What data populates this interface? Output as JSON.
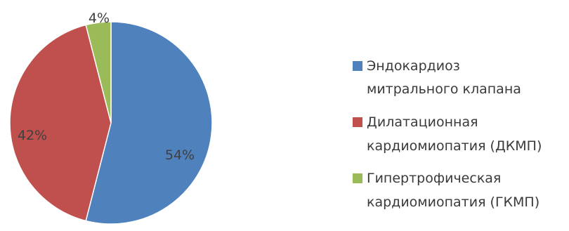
{
  "chart_data": {
    "type": "pie",
    "categories": [
      "Эндокардиоз митрального клапана",
      "Дилатационная кардиомиопатия (ДКМП)",
      "Гипертрофическая кардиомиопатия (ГКМП)"
    ],
    "values": [
      54,
      42,
      4
    ],
    "data_labels": [
      "54%",
      "42%",
      "4%"
    ],
    "legend_lines": [
      [
        "Эндокардиоз",
        "митрального клапана"
      ],
      [
        "Дилатационная",
        "кардиомиопатия (ДКМП)"
      ],
      [
        "Гипертрофическая",
        "кардиомиопатия (ГКМП)"
      ]
    ],
    "colors": [
      "#4f81bd",
      "#c0504d",
      "#9bbb59"
    ],
    "legend_position": "right",
    "start_angle_deg": 0,
    "direction": "clockwise"
  }
}
